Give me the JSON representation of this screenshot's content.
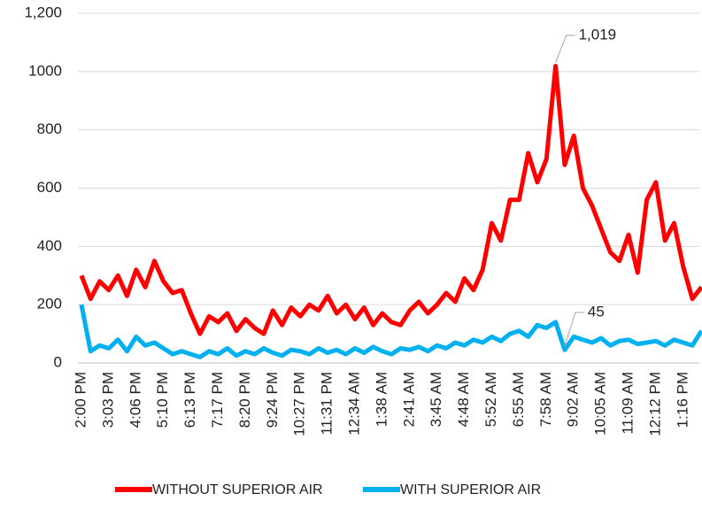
{
  "chart_data": {
    "type": "line",
    "categories": [
      "2:00 PM",
      null,
      null,
      "3:03 PM",
      null,
      null,
      "4:06 PM",
      null,
      null,
      "5:10 PM",
      null,
      null,
      "6:13 PM",
      null,
      null,
      "7:17 PM",
      null,
      null,
      "8:20 PM",
      null,
      null,
      "9:24 PM",
      null,
      null,
      "10:27 PM",
      null,
      null,
      "11:31 PM",
      null,
      null,
      "12:34 AM",
      null,
      null,
      "1:38 AM",
      null,
      null,
      "2:41 AM",
      null,
      null,
      "3:45 AM",
      null,
      null,
      "4:48 AM",
      null,
      null,
      "5:52 AM",
      null,
      null,
      "6:55 AM",
      null,
      null,
      "7:58 AM",
      null,
      null,
      "9:02 AM",
      null,
      null,
      "10:05 AM",
      null,
      null,
      "11:09 AM",
      null,
      null,
      "12:12 PM",
      null,
      null,
      "1:16 PM",
      null,
      null
    ],
    "series": [
      {
        "name": "WITHOUT SUPERIOR AIR",
        "color": "#ff0000",
        "values": [
          300,
          220,
          280,
          250,
          300,
          230,
          320,
          260,
          350,
          280,
          240,
          250,
          170,
          100,
          160,
          140,
          170,
          110,
          150,
          120,
          100,
          180,
          130,
          190,
          160,
          200,
          180,
          230,
          170,
          200,
          150,
          190,
          130,
          170,
          140,
          130,
          180,
          210,
          170,
          200,
          240,
          210,
          290,
          250,
          320,
          480,
          420,
          560,
          560,
          720,
          620,
          700,
          1019,
          680,
          780,
          600,
          540,
          460,
          380,
          350,
          440,
          310,
          560,
          620,
          420,
          480,
          330,
          220,
          260
        ],
        "value_labels": [
          null,
          null,
          null,
          null,
          null,
          null,
          null,
          null,
          null,
          null,
          null,
          null,
          null,
          null,
          null,
          null,
          null,
          null,
          null,
          null,
          null,
          null,
          null,
          null,
          null,
          null,
          null,
          null,
          null,
          null,
          null,
          null,
          null,
          null,
          null,
          null,
          null,
          null,
          null,
          null,
          null,
          null,
          null,
          null,
          null,
          null,
          null,
          null,
          null,
          null,
          null,
          null,
          "1,019",
          null,
          null,
          null,
          null,
          null,
          null,
          null,
          null,
          null,
          null,
          null,
          null,
          null,
          null,
          null,
          null
        ]
      },
      {
        "name": "WITH SUPERIOR AIR",
        "color": "#00b0f0",
        "values": [
          200,
          40,
          60,
          50,
          80,
          40,
          90,
          60,
          70,
          50,
          30,
          40,
          30,
          20,
          40,
          30,
          50,
          25,
          40,
          30,
          50,
          35,
          25,
          45,
          40,
          30,
          50,
          35,
          45,
          30,
          50,
          35,
          55,
          40,
          30,
          50,
          45,
          55,
          40,
          60,
          50,
          70,
          60,
          80,
          70,
          90,
          75,
          100,
          110,
          90,
          130,
          120,
          140,
          45,
          90,
          80,
          70,
          85,
          60,
          75,
          80,
          65,
          70,
          75,
          60,
          80,
          70,
          60,
          110
        ],
        "value_labels": [
          null,
          null,
          null,
          null,
          null,
          null,
          null,
          null,
          null,
          null,
          null,
          null,
          null,
          null,
          null,
          null,
          null,
          null,
          null,
          null,
          null,
          null,
          null,
          null,
          null,
          null,
          null,
          null,
          null,
          null,
          null,
          null,
          null,
          null,
          null,
          null,
          null,
          null,
          null,
          null,
          null,
          null,
          null,
          null,
          null,
          null,
          null,
          null,
          null,
          null,
          null,
          null,
          null,
          "45",
          null,
          null,
          null,
          null,
          null,
          null,
          null,
          null,
          null,
          null,
          null,
          null,
          null,
          null,
          null
        ]
      }
    ],
    "ylim": [
      0,
      1200
    ],
    "yticks": [
      0,
      200,
      400,
      600,
      800,
      1000,
      {
        "value": 1200,
        "label": "1,200"
      }
    ],
    "grid": true,
    "legend": "bottom"
  }
}
